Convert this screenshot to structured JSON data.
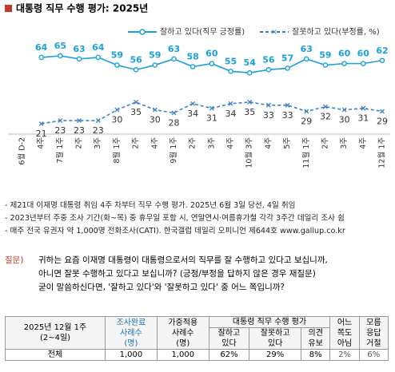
{
  "chart_data": {
    "type": "line",
    "title": "대통령 직무 수행 평가: 2025년",
    "categories": [
      "6월 D-2",
      "4주",
      "7월 1주",
      "2주",
      "3주",
      "8월 1주",
      "2주",
      "4주",
      "9월 1주",
      "2주",
      "3주",
      "4주",
      "10월 3주",
      "4주",
      "5주",
      "11월 1주",
      "2주",
      "3주",
      "4주",
      "12월 1주"
    ],
    "series": [
      {
        "name": "잘하고 있다(직무 긍정률)",
        "color": "#1aa0dc",
        "values": [
          null,
          64,
          65,
          63,
          64,
          59,
          56,
          59,
          63,
          58,
          60,
          55,
          54,
          56,
          57,
          63,
          59,
          60,
          60,
          62
        ]
      },
      {
        "name": "잘못하고 있다(부정률, %)",
        "color": "#3d7fc4",
        "values": [
          null,
          21,
          23,
          23,
          23,
          30,
          35,
          30,
          28,
          34,
          31,
          34,
          35,
          33,
          33,
          29,
          32,
          30,
          31,
          29
        ]
      }
    ],
    "ylim": [
      0,
      80
    ],
    "grid": false,
    "legend": "top-right"
  },
  "notes": [
    "- 제21대 이재명 대통령 취임 4주 차부터 직무 수행 평가. 2025년 6월 3일 당선, 4일 취임",
    "- 2023년부터 주중 조사 기간(화~목) 중 휴무일 포함 시, 연말연시·여름휴가철 각각 3주간 데일리 조사 쉼",
    "- 매주 전국 유권자 약 1,000명 전화조사(CATI). 한국갤럽 데일리 오피니언 제644호 www.gallup.co.kr"
  ],
  "question": {
    "label": "질문)",
    "lines": [
      "귀하는 요즘 이재명 대통령이 대통령으로서의 직무를 잘 수행하고 있다고 보십니까,",
      "아니면 잘못 수행하고 있다고 보십니까? (긍정/부정을 답하지 않은 경우 재질문)",
      "굳이 말씀하신다면, '잘하고 있다'와 '잘못하고 있다' 중 어느 쪽입니까?"
    ]
  },
  "table": {
    "period": [
      "2025년 12월 1주",
      "(2~4일)"
    ],
    "headers": [
      "조사완료",
      "사례수",
      "(명)",
      "가중적용",
      "사례수",
      "(명)",
      "대통령 직무 수행 평가",
      "잘하고",
      "있다",
      "잘못하고",
      "있다",
      "의견",
      "유보",
      "어느",
      "쪽도",
      "아님",
      "모름",
      "응답",
      "거절"
    ],
    "row": [
      "전체",
      "1,000",
      "1,000",
      "62%",
      "29%",
      "8%",
      "2%",
      "6%"
    ]
  }
}
